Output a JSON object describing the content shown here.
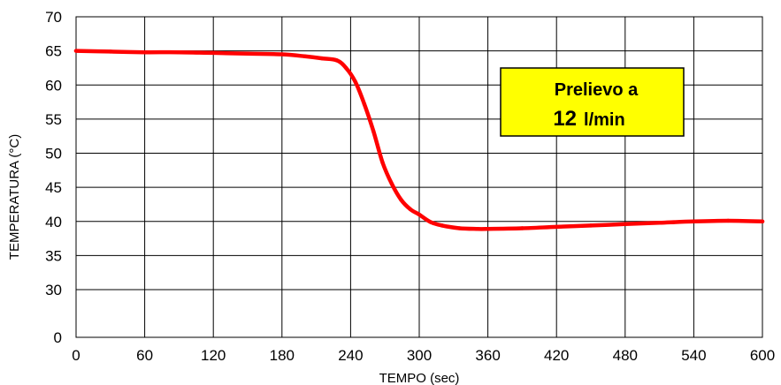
{
  "chart_data": {
    "type": "line",
    "title": "",
    "xlabel": "TEMPO (sec)",
    "ylabel": "TEMPERATURA (°C)",
    "xlim": [
      0,
      600
    ],
    "ylim": [
      0,
      70
    ],
    "x_ticks": [
      "0",
      "60",
      "120",
      "180",
      "240",
      "300",
      "360",
      "420",
      "480",
      "540",
      "600"
    ],
    "y_ticks": [
      "0",
      "30",
      "35",
      "40",
      "45",
      "50",
      "55",
      "60",
      "65",
      "70"
    ],
    "grid": true,
    "legend": "none",
    "line_color": "#ff0000",
    "series": [
      {
        "x": [
          0,
          30,
          60,
          90,
          120,
          150,
          180,
          200,
          215,
          228,
          236,
          244,
          252,
          260,
          268,
          276,
          284,
          292,
          300,
          310,
          320,
          335,
          350,
          360,
          390,
          420,
          450,
          480,
          510,
          540,
          570,
          600
        ],
        "y": [
          65,
          64.9,
          64.8,
          64.8,
          64.7,
          64.6,
          64.5,
          64.2,
          63.9,
          63.6,
          62.5,
          60.5,
          57.2,
          53.2,
          48.6,
          45.5,
          43.2,
          41.8,
          41.0,
          39.9,
          39.4,
          39.0,
          38.9,
          38.9,
          39.0,
          39.2,
          39.4,
          39.6,
          39.8,
          40.0,
          40.1,
          40.0
        ]
      }
    ],
    "annotation": {
      "line1": "Prelievo a",
      "line2_value": "12",
      "line2_unit": "l/min",
      "background": "#ffff00",
      "border": "#000000"
    }
  }
}
